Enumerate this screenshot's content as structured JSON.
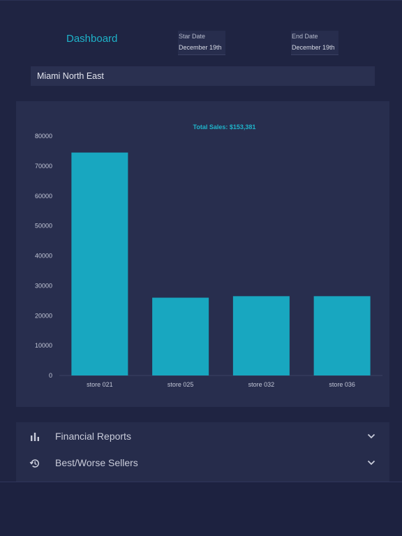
{
  "header": {
    "title": "Dashboard",
    "start_date": {
      "label": "Star Date",
      "value": "December 19th"
    },
    "end_date": {
      "label": "End Date",
      "value": "December 19th"
    }
  },
  "location": {
    "value": "Miami North East"
  },
  "chart_data": {
    "type": "bar",
    "title": "Total Sales: $153,381",
    "categories": [
      "store 021",
      "store 025",
      "store 032",
      "store 036"
    ],
    "values": [
      74500,
      26000,
      26500,
      26500
    ],
    "ylim": [
      0,
      80000
    ],
    "yticks": [
      0,
      10000,
      20000,
      30000,
      40000,
      50000,
      60000,
      70000,
      80000
    ],
    "xlabel": "",
    "ylabel": "",
    "grid": false,
    "bar_color": "#18a7c0"
  },
  "accordion": [
    {
      "label": "Financial Reports",
      "icon": "bar-chart-icon"
    },
    {
      "label": "Best/Worse Sellers",
      "icon": "history-icon"
    }
  ],
  "colors": {
    "accent": "#1fb3c9",
    "background": "#1f2442",
    "card": "#282e4e"
  }
}
